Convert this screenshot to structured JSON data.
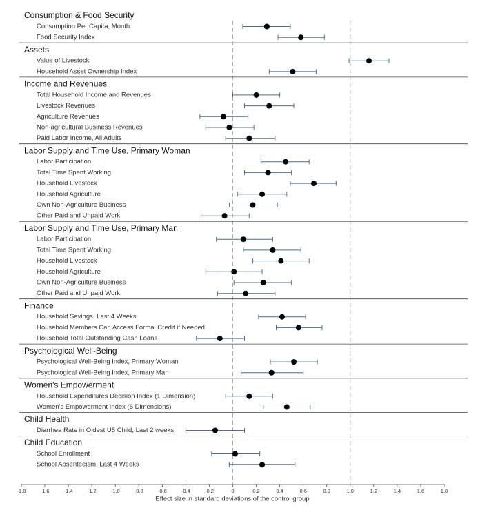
{
  "chart_data": {
    "type": "forest",
    "xlabel": "Effect size in standard deviations of the control group",
    "xlim": [
      -1.8,
      1.8
    ],
    "xticks": [
      -1.8,
      -1.6,
      -1.4,
      -1.2,
      {
        "value": -1,
        "label": "-1.0"
      },
      -0.8,
      -0.6,
      -0.4,
      -0.2,
      0,
      0.2,
      0.4,
      0.6,
      0.8,
      {
        "value": 1,
        "label": "1.0"
      },
      1.2,
      1.4,
      1.6,
      1.8
    ],
    "reference_lines": [
      0,
      1
    ],
    "point_color": "#000000",
    "ci_color": "#4a6e8f",
    "groups": [
      {
        "title": "Consumption & Food Security",
        "categories": [
          "Consumption Per Capita, Month",
          "Food Security Index"
        ],
        "values": [
          0.29,
          0.58
        ],
        "ci_low": [
          0.085,
          0.385
        ],
        "ci_high": [
          0.49,
          0.78
        ]
      },
      {
        "title": "Assets",
        "categories": [
          "Value of Livestock",
          "Household Asset Ownership Index"
        ],
        "values": [
          1.16,
          0.51
        ],
        "ci_low": [
          0.99,
          0.31
        ],
        "ci_high": [
          1.33,
          0.71
        ]
      },
      {
        "title": "Income and Revenues",
        "categories": [
          "Total Household Income and Revenues",
          "Livestock Revenues",
          "Agriculture Revenues",
          "Non-agricultural Business Revenues",
          "Paid Labor Income, All Adults"
        ],
        "values": [
          0.2,
          0.31,
          -0.08,
          -0.03,
          0.14
        ],
        "ci_low": [
          0.0,
          0.1,
          -0.28,
          -0.23,
          -0.06
        ],
        "ci_high": [
          0.4,
          0.52,
          0.13,
          0.18,
          0.36
        ]
      },
      {
        "title": "Labor Supply and Time Use, Primary Woman",
        "categories": [
          "Labor Participation",
          "Total Time Spent Working",
          "Household Livestock",
          "Household Agriculture",
          "Own Non-Agriculture Business",
          "Other Paid and Unpaid Work"
        ],
        "values": [
          0.45,
          0.3,
          0.69,
          0.25,
          0.17,
          -0.07
        ],
        "ci_low": [
          0.24,
          0.1,
          0.49,
          0.04,
          -0.03,
          -0.27
        ],
        "ci_high": [
          0.65,
          0.5,
          0.88,
          0.46,
          0.38,
          0.14
        ]
      },
      {
        "title": "Labor Supply and Time Use, Primary Man",
        "categories": [
          "Labor Participation",
          "Total Time Spent Working",
          "Household Livestock",
          "Household Agriculture",
          "Own Non-Agriculture Business",
          "Other Paid and Unpaid Work"
        ],
        "values": [
          0.09,
          0.34,
          0.41,
          0.01,
          0.26,
          0.11
        ],
        "ci_low": [
          -0.14,
          0.09,
          0.17,
          -0.23,
          0.01,
          -0.13
        ],
        "ci_high": [
          0.34,
          0.58,
          0.65,
          0.25,
          0.5,
          0.36
        ]
      },
      {
        "title": "Finance",
        "categories": [
          "Household Savings, Last 4 Weeks",
          "Household Members Can Access Formal Credit if Needed",
          "Household Total Outstanding Cash Loans"
        ],
        "values": [
          0.42,
          0.56,
          -0.11
        ],
        "ci_low": [
          0.22,
          0.37,
          -0.31
        ],
        "ci_high": [
          0.62,
          0.76,
          0.1
        ]
      },
      {
        "title": "Psychological Well-Being",
        "categories": [
          "Psychological Well-Being Index, Primary Woman",
          "Psychological Well-Being Index, Primary Man"
        ],
        "values": [
          0.52,
          0.33
        ],
        "ci_low": [
          0.32,
          0.07
        ],
        "ci_high": [
          0.72,
          0.6
        ]
      },
      {
        "title": "Women's Empowerment",
        "categories": [
          "Household Expenditures Decision Index (1 Dimension)",
          "Women's Empowerment Index (6 Dimensions)"
        ],
        "values": [
          0.14,
          0.46
        ],
        "ci_low": [
          -0.06,
          0.26
        ],
        "ci_high": [
          0.34,
          0.66
        ]
      },
      {
        "title": "Child Health",
        "categories": [
          "Diarrhea Rate in Oldest U5 Child, Last 2 weeks"
        ],
        "values": [
          -0.15
        ],
        "ci_low": [
          -0.4
        ],
        "ci_high": [
          0.1
        ]
      },
      {
        "title": "Child Education",
        "categories": [
          "School Enrollment",
          "School Absenteeism, Last 4 Weeks"
        ],
        "values": [
          0.02,
          0.25
        ],
        "ci_low": [
          -0.18,
          -0.03
        ],
        "ci_high": [
          0.23,
          0.53
        ]
      }
    ]
  }
}
